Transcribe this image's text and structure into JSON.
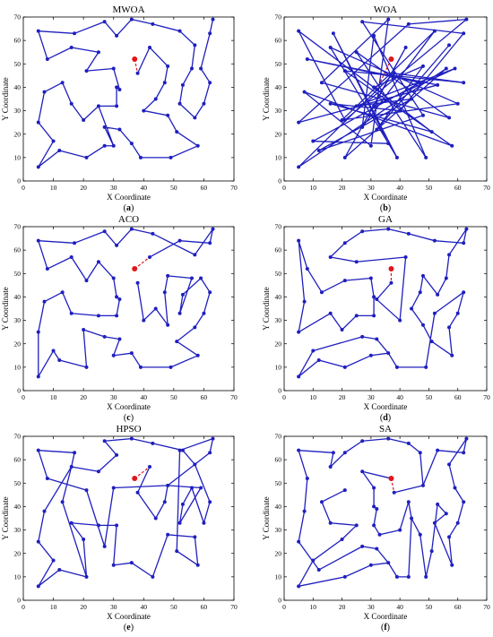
{
  "figure": {
    "shared_axes": {
      "xlabel": "X Coordinate",
      "ylabel": "Y Coordinate",
      "xlim": [
        0,
        70
      ],
      "ylim": [
        0,
        70
      ],
      "xticks": [
        0,
        10,
        20,
        30,
        40,
        50,
        60,
        70
      ],
      "yticks": [
        0,
        10,
        20,
        30,
        40,
        50,
        60,
        70
      ],
      "grid": false,
      "legend": "none"
    },
    "colors": {
      "route": "#1f1fbf",
      "start": "#e0161b",
      "axis": "#000000"
    }
  },
  "chart_data": [
    {
      "type": "line",
      "title": "MWOA",
      "caption": "(a)",
      "xlabel": "X Coordinate",
      "ylabel": "Y Coordinate",
      "xlim": [
        0,
        70
      ],
      "ylim": [
        0,
        70
      ],
      "start": [
        37,
        52
      ],
      "route": [
        [
          37,
          52
        ],
        [
          38,
          46
        ],
        [
          42,
          57
        ],
        [
          48,
          49
        ],
        [
          47,
          42
        ],
        [
          44,
          35
        ],
        [
          40,
          30
        ],
        [
          48,
          28
        ],
        [
          51,
          21
        ],
        [
          58,
          15
        ],
        [
          49,
          10
        ],
        [
          39,
          10
        ],
        [
          36,
          16
        ],
        [
          32,
          22
        ],
        [
          27,
          23
        ],
        [
          30,
          15
        ],
        [
          25,
          32
        ],
        [
          31,
          32
        ],
        [
          31,
          40
        ],
        [
          32,
          39
        ],
        [
          30,
          48
        ],
        [
          21,
          47
        ],
        [
          25,
          55
        ],
        [
          16,
          57
        ],
        [
          8,
          52
        ],
        [
          5,
          64
        ],
        [
          17,
          63
        ],
        [
          27,
          68
        ],
        [
          31,
          62
        ],
        [
          36,
          69
        ],
        [
          43,
          67
        ],
        [
          52,
          64
        ],
        [
          57,
          58
        ],
        [
          56,
          48
        ],
        [
          53,
          41
        ],
        [
          52,
          33
        ],
        [
          57,
          27
        ],
        [
          60,
          33
        ],
        [
          62,
          42
        ],
        [
          59,
          48
        ],
        [
          62,
          63
        ],
        [
          63,
          69
        ]
      ],
      "route_closing_gap": true,
      "extra_segments": [
        [
          [
            5,
            25
          ],
          [
            7,
            38
          ],
          [
            13,
            42
          ],
          [
            16,
            33
          ],
          [
            20,
            26
          ],
          [
            25,
            32
          ]
        ],
        [
          [
            5,
            25
          ],
          [
            10,
            17
          ],
          [
            5,
            6
          ],
          [
            12,
            13
          ],
          [
            21,
            10
          ],
          [
            27,
            15
          ],
          [
            30,
            15
          ]
        ]
      ]
    },
    {
      "type": "line",
      "title": "WOA",
      "caption": "(b)",
      "xlabel": "X Coordinate",
      "ylabel": "Y Coordinate",
      "xlim": [
        0,
        70
      ],
      "ylim": [
        0,
        70
      ],
      "start": [
        37,
        52
      ],
      "route": [
        [
          37,
          52
        ],
        [
          32,
          39
        ],
        [
          5,
          64
        ],
        [
          21,
          26
        ],
        [
          63,
          69
        ],
        [
          43,
          67
        ],
        [
          5,
          25
        ],
        [
          53,
          41
        ],
        [
          8,
          52
        ],
        [
          47,
          42
        ],
        [
          10,
          17
        ],
        [
          36,
          16
        ],
        [
          17,
          63
        ],
        [
          39,
          10
        ],
        [
          16,
          57
        ],
        [
          60,
          33
        ],
        [
          20,
          26
        ],
        [
          52,
          64
        ],
        [
          27,
          23
        ],
        [
          31,
          62
        ],
        [
          49,
          10
        ],
        [
          25,
          55
        ],
        [
          57,
          27
        ],
        [
          13,
          42
        ],
        [
          36,
          69
        ],
        [
          30,
          15
        ],
        [
          7,
          38
        ],
        [
          58,
          15
        ],
        [
          21,
          47
        ],
        [
          62,
          42
        ],
        [
          38,
          46
        ],
        [
          5,
          6
        ],
        [
          56,
          48
        ],
        [
          21,
          10
        ],
        [
          42,
          57
        ],
        [
          31,
          32
        ],
        [
          59,
          48
        ],
        [
          25,
          32
        ],
        [
          44,
          35
        ],
        [
          12,
          13
        ],
        [
          48,
          28
        ],
        [
          27,
          68
        ],
        [
          62,
          63
        ],
        [
          40,
          30
        ],
        [
          16,
          33
        ],
        [
          51,
          21
        ],
        [
          31,
          40
        ],
        [
          48,
          49
        ],
        [
          32,
          22
        ],
        [
          57,
          58
        ]
      ]
    },
    {
      "type": "line",
      "title": "ACO",
      "caption": "(c)",
      "xlabel": "X Coordinate",
      "ylabel": "Y Coordinate",
      "xlim": [
        0,
        70
      ],
      "ylim": [
        0,
        70
      ],
      "start": [
        37,
        52
      ],
      "route": [
        [
          37,
          52
        ],
        [
          42,
          57
        ],
        [
          52,
          64
        ],
        [
          62,
          63
        ],
        [
          63,
          69
        ],
        [
          57,
          58
        ],
        [
          43,
          67
        ],
        [
          36,
          69
        ],
        [
          31,
          62
        ],
        [
          27,
          68
        ],
        [
          17,
          63
        ],
        [
          5,
          64
        ],
        [
          8,
          52
        ],
        [
          16,
          57
        ],
        [
          21,
          47
        ],
        [
          25,
          55
        ],
        [
          30,
          48
        ],
        [
          31,
          40
        ],
        [
          32,
          39
        ],
        [
          31,
          32
        ],
        [
          25,
          32
        ],
        [
          16,
          33
        ],
        [
          13,
          42
        ],
        [
          7,
          38
        ],
        [
          5,
          25
        ],
        [
          5,
          6
        ],
        [
          10,
          17
        ],
        [
          12,
          13
        ],
        [
          21,
          10
        ],
        [
          20,
          26
        ],
        [
          27,
          23
        ],
        [
          32,
          22
        ],
        [
          30,
          15
        ],
        [
          36,
          16
        ],
        [
          39,
          10
        ],
        [
          49,
          10
        ],
        [
          58,
          15
        ],
        [
          51,
          21
        ],
        [
          57,
          27
        ],
        [
          60,
          33
        ],
        [
          62,
          42
        ],
        [
          59,
          48
        ],
        [
          53,
          41
        ],
        [
          52,
          33
        ],
        [
          56,
          48
        ],
        [
          48,
          49
        ],
        [
          47,
          42
        ],
        [
          48,
          28
        ],
        [
          44,
          35
        ],
        [
          40,
          30
        ],
        [
          38,
          46
        ]
      ]
    },
    {
      "type": "line",
      "title": "GA",
      "caption": "(d)",
      "xlabel": "X Coordinate",
      "ylabel": "Y Coordinate",
      "xlim": [
        0,
        70
      ],
      "ylim": [
        0,
        70
      ],
      "start": [
        37,
        52
      ],
      "route": [
        [
          37,
          52
        ],
        [
          37,
          52
        ],
        [
          37,
          46
        ],
        [
          32,
          39
        ],
        [
          31,
          40
        ],
        [
          30,
          48
        ],
        [
          21,
          47
        ],
        [
          13,
          42
        ],
        [
          8,
          52
        ],
        [
          5,
          64
        ],
        [
          7,
          38
        ],
        [
          5,
          25
        ],
        [
          16,
          33
        ],
        [
          20,
          26
        ],
        [
          25,
          32
        ],
        [
          31,
          32
        ],
        [
          31,
          40
        ],
        [
          40,
          30
        ],
        [
          42,
          57
        ],
        [
          25,
          55
        ],
        [
          16,
          57
        ],
        [
          21,
          63
        ],
        [
          27,
          68
        ],
        [
          36,
          69
        ],
        [
          43,
          67
        ],
        [
          52,
          64
        ],
        [
          62,
          63
        ],
        [
          63,
          69
        ],
        [
          57,
          58
        ],
        [
          56,
          48
        ],
        [
          53,
          41
        ],
        [
          48,
          49
        ],
        [
          47,
          42
        ],
        [
          44,
          35
        ],
        [
          48,
          28
        ],
        [
          51,
          21
        ],
        [
          58,
          15
        ],
        [
          57,
          27
        ],
        [
          60,
          33
        ],
        [
          62,
          42
        ],
        [
          52,
          33
        ],
        [
          49,
          10
        ],
        [
          39,
          10
        ],
        [
          36,
          16
        ],
        [
          30,
          15
        ],
        [
          21,
          10
        ],
        [
          12,
          13
        ],
        [
          5,
          6
        ],
        [
          10,
          17
        ],
        [
          27,
          23
        ],
        [
          32,
          22
        ],
        [
          36,
          16
        ]
      ]
    },
    {
      "type": "line",
      "title": "HPSO",
      "caption": "(e)",
      "xlabel": "X Coordinate",
      "ylabel": "Y Coordinate",
      "xlim": [
        0,
        70
      ],
      "ylim": [
        0,
        70
      ],
      "start": [
        37,
        52
      ],
      "route": [
        [
          37,
          52
        ],
        [
          42,
          57
        ],
        [
          38,
          46
        ],
        [
          44,
          35
        ],
        [
          47,
          42
        ],
        [
          48,
          49
        ],
        [
          57,
          58
        ],
        [
          62,
          63
        ],
        [
          63,
          69
        ],
        [
          52,
          64
        ],
        [
          51,
          21
        ],
        [
          58,
          15
        ],
        [
          57,
          27
        ],
        [
          48,
          28
        ],
        [
          43,
          10
        ],
        [
          36,
          16
        ],
        [
          30,
          15
        ],
        [
          31,
          32
        ],
        [
          25,
          32
        ],
        [
          16,
          33
        ],
        [
          20,
          26
        ],
        [
          21,
          10
        ],
        [
          13,
          42
        ],
        [
          16,
          57
        ],
        [
          25,
          55
        ],
        [
          31,
          62
        ],
        [
          27,
          68
        ],
        [
          36,
          69
        ],
        [
          43,
          67
        ],
        [
          53,
          64
        ],
        [
          57,
          58
        ],
        [
          62,
          42
        ],
        [
          60,
          33
        ],
        [
          56,
          48
        ],
        [
          53,
          41
        ],
        [
          52,
          33
        ],
        [
          59,
          48
        ],
        [
          48,
          49
        ],
        [
          30,
          48
        ],
        [
          27,
          23
        ],
        [
          21,
          47
        ],
        [
          8,
          52
        ],
        [
          5,
          64
        ],
        [
          17,
          63
        ],
        [
          16,
          57
        ],
        [
          7,
          38
        ],
        [
          5,
          25
        ],
        [
          10,
          17
        ],
        [
          5,
          6
        ],
        [
          12,
          13
        ],
        [
          21,
          10
        ]
      ]
    },
    {
      "type": "line",
      "title": "SA",
      "caption": "(f)",
      "xlabel": "X Coordinate",
      "ylabel": "Y Coordinate",
      "xlim": [
        0,
        70
      ],
      "ylim": [
        0,
        70
      ],
      "start": [
        37,
        52
      ],
      "route": [
        [
          37,
          52
        ],
        [
          38,
          46
        ],
        [
          48,
          49
        ],
        [
          53,
          64
        ],
        [
          62,
          63
        ],
        [
          63,
          69
        ],
        [
          57,
          58
        ],
        [
          59,
          48
        ],
        [
          62,
          42
        ],
        [
          60,
          33
        ],
        [
          57,
          27
        ],
        [
          58,
          15
        ],
        [
          52,
          33
        ],
        [
          56,
          37
        ],
        [
          53,
          41
        ],
        [
          51,
          21
        ],
        [
          49,
          10
        ],
        [
          47,
          28
        ],
        [
          44,
          35
        ],
        [
          43,
          10
        ],
        [
          39,
          10
        ],
        [
          36,
          16
        ],
        [
          32,
          22
        ],
        [
          27,
          23
        ],
        [
          12,
          13
        ],
        [
          5,
          25
        ],
        [
          7,
          38
        ],
        [
          8,
          52
        ],
        [
          5,
          64
        ],
        [
          17,
          63
        ],
        [
          16,
          57
        ],
        [
          21,
          63
        ],
        [
          27,
          68
        ],
        [
          36,
          69
        ],
        [
          43,
          67
        ],
        [
          47,
          63
        ],
        [
          48,
          49
        ]
      ],
      "extra_segments": [
        [
          [
            37,
            52
          ],
          [
            27,
            55
          ],
          [
            31,
            48
          ],
          [
            31,
            40
          ],
          [
            32,
            39
          ],
          [
            31,
            32
          ],
          [
            33,
            28
          ],
          [
            40,
            30
          ],
          [
            43,
            42
          ],
          [
            44,
            35
          ]
        ],
        [
          [
            21,
            47
          ],
          [
            13,
            42
          ],
          [
            16,
            33
          ],
          [
            25,
            32
          ],
          [
            20,
            26
          ],
          [
            10,
            17
          ],
          [
            5,
            6
          ],
          [
            21,
            10
          ],
          [
            30,
            15
          ],
          [
            36,
            16
          ]
        ]
      ]
    }
  ]
}
